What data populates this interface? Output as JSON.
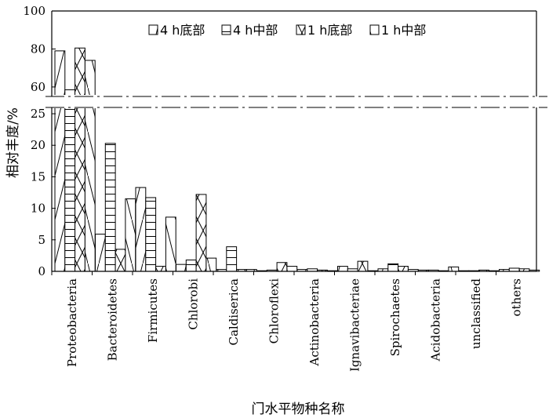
{
  "chart_data": {
    "type": "bar",
    "xlabel": "门水平物种名称",
    "ylabel": "相对丰度/%",
    "categories": [
      "Proteobacteria",
      "Bacteroidetes",
      "Firmicutes",
      "Chlorobi",
      "Caldiserica",
      "Chloroflexi",
      "Actinobacteria",
      "Ignavibacteriae",
      "Spirochaetes",
      "Acidobacteria",
      "unclassified",
      "others"
    ],
    "series": [
      {
        "name": "4 h底部",
        "pattern": "diag-forward",
        "values": [
          79.0,
          5.9,
          13.3,
          1.1,
          0.3,
          0.1,
          0.3,
          0.8,
          0.4,
          0.2,
          0.1,
          0.3
        ]
      },
      {
        "name": "4 h中部",
        "pattern": "horizontal",
        "values": [
          58.5,
          20.3,
          11.7,
          1.8,
          3.9,
          0.2,
          0.4,
          0.4,
          1.2,
          0.2,
          0.1,
          0.5
        ]
      },
      {
        "name": "1 h底部",
        "pattern": "cross",
        "values": [
          80.5,
          3.5,
          0.8,
          12.2,
          0.3,
          1.4,
          0.2,
          1.6,
          0.8,
          0.1,
          0.2,
          0.4
        ]
      },
      {
        "name": "1 h中部",
        "pattern": "diag-back",
        "values": [
          74.0,
          11.5,
          8.6,
          2.1,
          0.3,
          0.8,
          0.1,
          0.1,
          0.3,
          0.7,
          0.1,
          0.2
        ]
      }
    ],
    "y_axis_break": {
      "lower_range": [
        0,
        26
      ],
      "upper_range": [
        55,
        100
      ]
    },
    "lower_ticks": [
      0,
      5,
      10,
      15,
      20,
      25
    ],
    "upper_ticks": [
      60,
      80,
      100
    ],
    "legend_position": "top-right",
    "grid": false
  },
  "colors": {
    "stroke": "#000000",
    "fill": "#ffffff",
    "break_line": "#000000"
  }
}
